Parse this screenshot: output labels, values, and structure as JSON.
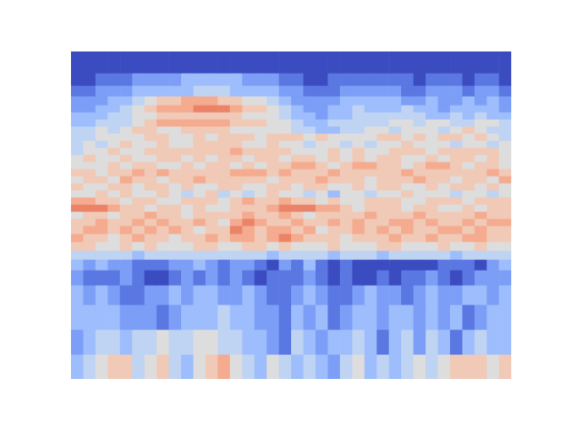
{
  "chart_data": {
    "type": "heatmap",
    "color": "coolwarm",
    "tick_labels": false,
    "xlim": [
      0,
      36
    ],
    "ylim": [
      0,
      369
    ],
    "zlim": [
      0,
      10
    ],
    "y_edges": [
      0,
      28,
      56,
      84,
      106,
      123,
      135,
      145,
      155,
      164,
      173,
      181,
      189,
      197,
      205,
      213,
      221,
      229,
      237,
      245,
      253,
      261,
      269,
      277,
      285,
      293,
      301,
      309,
      319,
      331,
      345,
      369
    ],
    "cells": [
      [
        3,
        4,
        5,
        6,
        6,
        4,
        5,
        6,
        4,
        3,
        5,
        6,
        7,
        5,
        4,
        3,
        5,
        4,
        3,
        4,
        3,
        2,
        4,
        5,
        3,
        4,
        3,
        4,
        5,
        4,
        5,
        6,
        6,
        6,
        5,
        6
      ],
      [
        2,
        3,
        4,
        4,
        3,
        4,
        4,
        5,
        4,
        4,
        5,
        5,
        4,
        4,
        3,
        3,
        2,
        1,
        4,
        3,
        2,
        3,
        3,
        4,
        3,
        1,
        3,
        4,
        2,
        4,
        3,
        1,
        3,
        4,
        3,
        3
      ],
      [
        3,
        3,
        3,
        3,
        2,
        2,
        2,
        1,
        2,
        3,
        3,
        3,
        4,
        3,
        3,
        2,
        2,
        1,
        3,
        2,
        3,
        1,
        2,
        3,
        3,
        2,
        3,
        3,
        2,
        3,
        2,
        3,
        1,
        2,
        3,
        3
      ],
      [
        3,
        2,
        3,
        2,
        1,
        1,
        2,
        2,
        3,
        2,
        3,
        3,
        2,
        2,
        3,
        2,
        1,
        1,
        2,
        3,
        2,
        1,
        1,
        2,
        3,
        2,
        2,
        1,
        2,
        3,
        2,
        2,
        3,
        3,
        2,
        3
      ],
      [
        2,
        1,
        1,
        1,
        2,
        1,
        0,
        0,
        1,
        2,
        1,
        2,
        1,
        2,
        1,
        0,
        1,
        1,
        1,
        2,
        1,
        0,
        1,
        0,
        0,
        1,
        0,
        1,
        1,
        2,
        1,
        0,
        1,
        2,
        2,
        2
      ],
      [
        3,
        2,
        3,
        2,
        2,
        1,
        1,
        1,
        2,
        2,
        3,
        2,
        1,
        2,
        2,
        1,
        0,
        2,
        1,
        3,
        1,
        0,
        1,
        0,
        0,
        0,
        0,
        0,
        0,
        0,
        1,
        1,
        1,
        0,
        2,
        3
      ],
      [
        4,
        4,
        4,
        4,
        4,
        3,
        4,
        4,
        4,
        4,
        4,
        4,
        4,
        4,
        4,
        4,
        3,
        4,
        4,
        4,
        4,
        3,
        4,
        4,
        4,
        3,
        4,
        4,
        4,
        4,
        4,
        3,
        4,
        4,
        4,
        4
      ],
      [
        6,
        6,
        5,
        5,
        6,
        5,
        6,
        5,
        5,
        5,
        6,
        6,
        5,
        5,
        6,
        6,
        5,
        6,
        5,
        5,
        5,
        6,
        5,
        5,
        5,
        6,
        6,
        5,
        5,
        5,
        6,
        5,
        5,
        6,
        5,
        5
      ],
      [
        7,
        6,
        6,
        5,
        6,
        7,
        6,
        6,
        5,
        6,
        6,
        7,
        6,
        7,
        7,
        6,
        7,
        8,
        7,
        6,
        6,
        6,
        5,
        6,
        6,
        6,
        7,
        6,
        6,
        7,
        6,
        6,
        7,
        7,
        6,
        6
      ],
      [
        6,
        7,
        7,
        6,
        7,
        6,
        7,
        6,
        7,
        6,
        5,
        6,
        6,
        8,
        7,
        6,
        7,
        7,
        6,
        7,
        5,
        6,
        6,
        7,
        6,
        7,
        6,
        7,
        6,
        6,
        7,
        7,
        6,
        7,
        6,
        6
      ],
      [
        6,
        6,
        7,
        6,
        6,
        7,
        6,
        7,
        6,
        6,
        7,
        6,
        5,
        7,
        8,
        7,
        6,
        6,
        7,
        6,
        6,
        7,
        6,
        7,
        6,
        6,
        7,
        7,
        6,
        7,
        6,
        6,
        7,
        6,
        7,
        7
      ],
      [
        5,
        6,
        6,
        5,
        6,
        6,
        7,
        6,
        6,
        5,
        6,
        6,
        6,
        6,
        7,
        6,
        6,
        7,
        6,
        5,
        6,
        6,
        6,
        6,
        7,
        6,
        6,
        6,
        7,
        6,
        6,
        6,
        6,
        7,
        6,
        6
      ],
      [
        8,
        8,
        8,
        7,
        6,
        6,
        5,
        6,
        6,
        5,
        6,
        5,
        5,
        6,
        6,
        6,
        7,
        8,
        8,
        8,
        7,
        7,
        6,
        5,
        6,
        6,
        6,
        5,
        6,
        6,
        5,
        5,
        6,
        5,
        6,
        6
      ],
      [
        7,
        7,
        6,
        6,
        5,
        6,
        6,
        5,
        5,
        6,
        6,
        6,
        5,
        6,
        7,
        6,
        6,
        7,
        6,
        6,
        5,
        6,
        5,
        5,
        6,
        6,
        6,
        5,
        5,
        6,
        6,
        6,
        5,
        6,
        6,
        6
      ],
      [
        5,
        5,
        6,
        5,
        6,
        5,
        5,
        6,
        5,
        4,
        5,
        6,
        4,
        5,
        4,
        5,
        6,
        5,
        5,
        4,
        5,
        3,
        5,
        5,
        4,
        5,
        5,
        6,
        5,
        5,
        5,
        4,
        5,
        5,
        4,
        5
      ],
      [
        6,
        5,
        5,
        6,
        6,
        5,
        6,
        6,
        5,
        6,
        5,
        5,
        6,
        6,
        5,
        5,
        6,
        6,
        5,
        6,
        6,
        5,
        5,
        6,
        5,
        6,
        6,
        5,
        5,
        6,
        5,
        6,
        6,
        5,
        6,
        5
      ],
      [
        5,
        6,
        6,
        5,
        7,
        6,
        6,
        5,
        6,
        6,
        7,
        6,
        6,
        6,
        6,
        6,
        5,
        6,
        6,
        6,
        7,
        6,
        6,
        6,
        5,
        6,
        6,
        6,
        7,
        6,
        6,
        5,
        6,
        6,
        5,
        7
      ],
      [
        6,
        6,
        5,
        6,
        6,
        7,
        6,
        7,
        6,
        6,
        6,
        6,
        6,
        7,
        7,
        7,
        6,
        7,
        6,
        6,
        6,
        7,
        6,
        6,
        6,
        6,
        6,
        7,
        6,
        6,
        6,
        6,
        6,
        6,
        7,
        6
      ],
      [
        5,
        5,
        5,
        6,
        5,
        6,
        6,
        5,
        5,
        6,
        5,
        6,
        6,
        5,
        6,
        5,
        6,
        6,
        7,
        7,
        6,
        5,
        6,
        7,
        7,
        6,
        6,
        5,
        6,
        7,
        7,
        6,
        5,
        6,
        6,
        5
      ],
      [
        5,
        6,
        5,
        5,
        6,
        5,
        5,
        6,
        6,
        5,
        6,
        5,
        6,
        6,
        5,
        6,
        6,
        5,
        6,
        6,
        5,
        6,
        5,
        6,
        5,
        6,
        6,
        5,
        5,
        6,
        5,
        6,
        6,
        5,
        6,
        5
      ],
      [
        4,
        5,
        5,
        6,
        5,
        5,
        6,
        6,
        6,
        6,
        6,
        6,
        6,
        7,
        6,
        6,
        6,
        6,
        5,
        5,
        5,
        6,
        5,
        6,
        5,
        5,
        6,
        6,
        6,
        5,
        6,
        6,
        6,
        6,
        6,
        5
      ],
      [
        4,
        5,
        4,
        5,
        6,
        5,
        5,
        6,
        5,
        5,
        6,
        6,
        6,
        6,
        5,
        5,
        6,
        5,
        5,
        4,
        5,
        5,
        4,
        5,
        4,
        5,
        5,
        6,
        5,
        5,
        5,
        4,
        5,
        5,
        4,
        5
      ],
      [
        4,
        4,
        5,
        5,
        5,
        5,
        6,
        6,
        5,
        5,
        6,
        5,
        6,
        6,
        6,
        5,
        6,
        6,
        6,
        5,
        6,
        5,
        5,
        5,
        5,
        6,
        6,
        5,
        6,
        5,
        6,
        6,
        5,
        6,
        5,
        4
      ],
      [
        4,
        4,
        5,
        4,
        5,
        6,
        6,
        5,
        5,
        6,
        6,
        6,
        6,
        5,
        5,
        5,
        5,
        5,
        4,
        4,
        3,
        3,
        4,
        4,
        5,
        5,
        4,
        5,
        5,
        5,
        4,
        5,
        6,
        5,
        4,
        4
      ],
      [
        3,
        3,
        4,
        4,
        4,
        5,
        6,
        7,
        7,
        7,
        7,
        7,
        7,
        6,
        6,
        6,
        5,
        5,
        4,
        3,
        3,
        4,
        4,
        4,
        4,
        4,
        5,
        5,
        4,
        5,
        5,
        4,
        4,
        5,
        5,
        4
      ],
      [
        3,
        3,
        3,
        4,
        4,
        5,
        5,
        6,
        6,
        6,
        6,
        6,
        6,
        6,
        5,
        5,
        5,
        4,
        3,
        3,
        2,
        3,
        3,
        4,
        4,
        4,
        4,
        4,
        4,
        3,
        3,
        4,
        3,
        4,
        3,
        3
      ],
      [
        2,
        2,
        3,
        3,
        4,
        5,
        6,
        7,
        7,
        7,
        8,
        8,
        8,
        7,
        6,
        6,
        5,
        4,
        3,
        2,
        2,
        3,
        3,
        4,
        3,
        3,
        3,
        4,
        3,
        3,
        2,
        3,
        3,
        3,
        3,
        2
      ],
      [
        2,
        2,
        2,
        3,
        3,
        4,
        5,
        6,
        6,
        7,
        7,
        7,
        6,
        6,
        5,
        5,
        4,
        3,
        2,
        2,
        2,
        2,
        3,
        3,
        3,
        3,
        3,
        2,
        2,
        3,
        2,
        2,
        3,
        2,
        3,
        2
      ],
      [
        1,
        1,
        2,
        2,
        2,
        3,
        3,
        3,
        3,
        3,
        4,
        4,
        4,
        3,
        3,
        3,
        3,
        2,
        2,
        1,
        1,
        1,
        2,
        2,
        2,
        2,
        2,
        1,
        1,
        2,
        2,
        2,
        1,
        2,
        2,
        1
      ],
      [
        0,
        0,
        1,
        1,
        1,
        2,
        2,
        2,
        2,
        3,
        3,
        3,
        3,
        3,
        2,
        2,
        2,
        1,
        1,
        0,
        0,
        1,
        1,
        1,
        1,
        1,
        1,
        1,
        0,
        1,
        1,
        1,
        0,
        1,
        1,
        0
      ],
      [
        0,
        0,
        0,
        0,
        0,
        0,
        0,
        0,
        0,
        0,
        0,
        0,
        0,
        0,
        0,
        0,
        0,
        0,
        0,
        0,
        0,
        0,
        0,
        0,
        0,
        0,
        0,
        0,
        0,
        0,
        0,
        0,
        0,
        0,
        0,
        0
      ]
    ]
  }
}
